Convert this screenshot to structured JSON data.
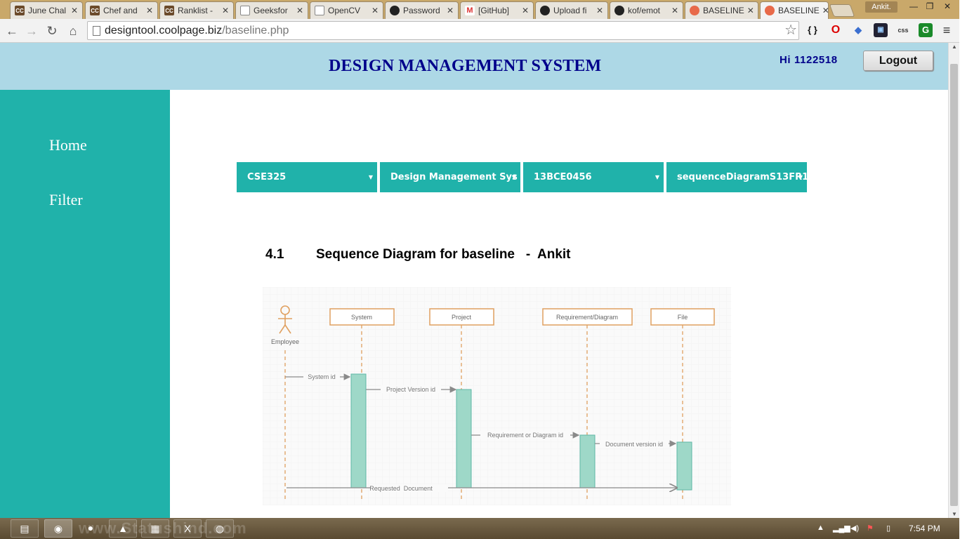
{
  "browser": {
    "tabs": [
      {
        "title": "June Chal",
        "icon": "cc"
      },
      {
        "title": "Chef and",
        "icon": "cc"
      },
      {
        "title": "Ranklist -",
        "icon": "cc"
      },
      {
        "title": "Geeksfor",
        "icon": "doc"
      },
      {
        "title": "OpenCV",
        "icon": "doc"
      },
      {
        "title": "Password",
        "icon": "gh"
      },
      {
        "title": "[GitHub]",
        "icon": "gm"
      },
      {
        "title": "Upload fi",
        "icon": "gh"
      },
      {
        "title": "kof/emot",
        "icon": "gh"
      },
      {
        "title": "BASELINE",
        "icon": "bl"
      },
      {
        "title": "BASELINE",
        "icon": "bl"
      }
    ],
    "profile_name": "Ankit.",
    "url_domain": "designtool.coolpage.biz",
    "url_path": "/baseline.php"
  },
  "header": {
    "title": "DESIGN MANAGEMENT SYSTEM",
    "greeting": "Hi 1122518",
    "logout_label": "Logout"
  },
  "sidebar": {
    "items": [
      {
        "label": "Home"
      },
      {
        "label": "Filter"
      }
    ]
  },
  "filters": [
    {
      "value": "CSE325"
    },
    {
      "value": "Design Management Sys"
    },
    {
      "value": "13BCE0456"
    },
    {
      "value": "sequenceDiagramS13FR1"
    }
  ],
  "content": {
    "section_number": "4.1",
    "section_title": "Sequence Diagram for baseline   -  Ankit"
  },
  "diagram": {
    "actor": "Employee",
    "lifelines": [
      "System",
      "Project",
      "Requirement/Diagram",
      "File"
    ],
    "messages": [
      "System id",
      "Project Version id",
      "Requirement or Diagram id",
      "Document version id",
      "Requested  Document"
    ]
  },
  "taskbar": {
    "watermark": "www.Statushind.com",
    "clock": "7:54 PM"
  },
  "colors": {
    "header_bg": "#add8e6",
    "title_color": "#00008b",
    "sidebar_bg": "#20b2aa",
    "dropdown_bg": "#20b2aa",
    "activation_fill": "#9ed8c8",
    "lifeline_border": "#e0a060"
  }
}
